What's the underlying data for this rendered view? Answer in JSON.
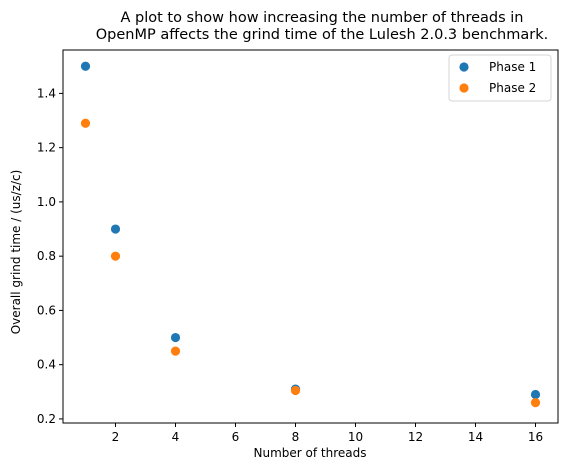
{
  "chart_data": {
    "type": "scatter",
    "title": "A plot to show how increasing the number of threads in\nOpenMP affects the grind time of the Lulesh 2.0.3 benchmark.",
    "xlabel": "Number of threads",
    "ylabel": "Overall grind time / (us/z/c)",
    "xlim": [
      0.25,
      16.75
    ],
    "ylim": [
      0.185,
      1.56
    ],
    "xticks": [
      2,
      4,
      6,
      8,
      10,
      12,
      14,
      16
    ],
    "yticks": [
      0.2,
      0.4,
      0.6,
      0.8,
      1.0,
      1.2,
      1.4
    ],
    "ytick_labels": [
      "0.2",
      "0.4",
      "0.6",
      "0.8",
      "1.0",
      "1.2",
      "1.4"
    ],
    "grid": false,
    "legend_position": "top-right",
    "series": [
      {
        "name": "Phase 1",
        "color": "#1f77b4",
        "x": [
          1,
          2,
          4,
          8,
          16
        ],
        "y": [
          1.5,
          0.9,
          0.5,
          0.31,
          0.29
        ]
      },
      {
        "name": "Phase 2",
        "color": "#ff7f0e",
        "x": [
          1,
          2,
          4,
          8,
          16
        ],
        "y": [
          1.29,
          0.8,
          0.45,
          0.305,
          0.26
        ]
      }
    ]
  }
}
